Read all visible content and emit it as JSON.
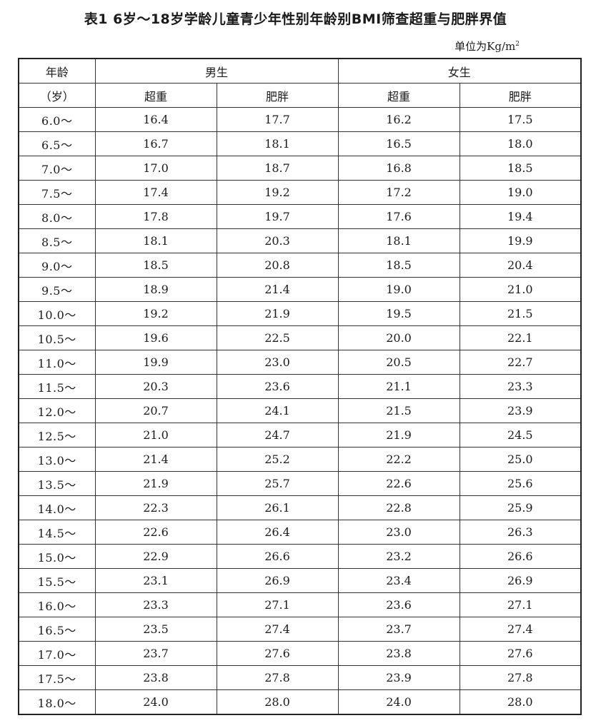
{
  "title": "表1 6岁～18岁学龄儿童青少年性别年龄别BMI筛查超重与肥胖界值",
  "unit": {
    "prefix": "单位为Kg/m",
    "sup": "2"
  },
  "header": {
    "age_line1": "年龄",
    "age_line2": "（岁）",
    "male": "男生",
    "female": "女生",
    "overweight": "超重",
    "obese": "肥胖"
  },
  "rows": [
    {
      "age": "6.0～",
      "m_ow": "16.4",
      "m_ob": "17.7",
      "f_ow": "16.2",
      "f_ob": "17.5"
    },
    {
      "age": "6.5～",
      "m_ow": "16.7",
      "m_ob": "18.1",
      "f_ow": "16.5",
      "f_ob": "18.0"
    },
    {
      "age": "7.0～",
      "m_ow": "17.0",
      "m_ob": "18.7",
      "f_ow": "16.8",
      "f_ob": "18.5"
    },
    {
      "age": "7.5～",
      "m_ow": "17.4",
      "m_ob": "19.2",
      "f_ow": "17.2",
      "f_ob": "19.0"
    },
    {
      "age": "8.0～",
      "m_ow": "17.8",
      "m_ob": "19.7",
      "f_ow": "17.6",
      "f_ob": "19.4"
    },
    {
      "age": "8.5～",
      "m_ow": "18.1",
      "m_ob": "20.3",
      "f_ow": "18.1",
      "f_ob": "19.9"
    },
    {
      "age": "9.0～",
      "m_ow": "18.5",
      "m_ob": "20.8",
      "f_ow": "18.5",
      "f_ob": "20.4"
    },
    {
      "age": "9.5～",
      "m_ow": "18.9",
      "m_ob": "21.4",
      "f_ow": "19.0",
      "f_ob": "21.0"
    },
    {
      "age": "10.0～",
      "m_ow": "19.2",
      "m_ob": "21.9",
      "f_ow": "19.5",
      "f_ob": "21.5"
    },
    {
      "age": "10.5～",
      "m_ow": "19.6",
      "m_ob": "22.5",
      "f_ow": "20.0",
      "f_ob": "22.1"
    },
    {
      "age": "11.0～",
      "m_ow": "19.9",
      "m_ob": "23.0",
      "f_ow": "20.5",
      "f_ob": "22.7"
    },
    {
      "age": "11.5～",
      "m_ow": "20.3",
      "m_ob": "23.6",
      "f_ow": "21.1",
      "f_ob": "23.3"
    },
    {
      "age": "12.0～",
      "m_ow": "20.7",
      "m_ob": "24.1",
      "f_ow": "21.5",
      "f_ob": "23.9"
    },
    {
      "age": "12.5～",
      "m_ow": "21.0",
      "m_ob": "24.7",
      "f_ow": "21.9",
      "f_ob": "24.5"
    },
    {
      "age": "13.0～",
      "m_ow": "21.4",
      "m_ob": "25.2",
      "f_ow": "22.2",
      "f_ob": "25.0"
    },
    {
      "age": "13.5～",
      "m_ow": "21.9",
      "m_ob": "25.7",
      "f_ow": "22.6",
      "f_ob": "25.6"
    },
    {
      "age": "14.0～",
      "m_ow": "22.3",
      "m_ob": "26.1",
      "f_ow": "22.8",
      "f_ob": "25.9"
    },
    {
      "age": "14.5～",
      "m_ow": "22.6",
      "m_ob": "26.4",
      "f_ow": "23.0",
      "f_ob": "26.3"
    },
    {
      "age": "15.0～",
      "m_ow": "22.9",
      "m_ob": "26.6",
      "f_ow": "23.2",
      "f_ob": "26.6"
    },
    {
      "age": "15.5～",
      "m_ow": "23.1",
      "m_ob": "26.9",
      "f_ow": "23.4",
      "f_ob": "26.9"
    },
    {
      "age": "16.0～",
      "m_ow": "23.3",
      "m_ob": "27.1",
      "f_ow": "23.6",
      "f_ob": "27.1"
    },
    {
      "age": "16.5～",
      "m_ow": "23.5",
      "m_ob": "27.4",
      "f_ow": "23.7",
      "f_ob": "27.4"
    },
    {
      "age": "17.0～",
      "m_ow": "23.7",
      "m_ob": "27.6",
      "f_ow": "23.8",
      "f_ob": "27.6"
    },
    {
      "age": "17.5～",
      "m_ow": "23.8",
      "m_ob": "27.8",
      "f_ow": "23.9",
      "f_ob": "27.8"
    },
    {
      "age": "18.0～",
      "m_ow": "24.0",
      "m_ob": "28.0",
      "f_ow": "24.0",
      "f_ob": "28.0"
    }
  ]
}
